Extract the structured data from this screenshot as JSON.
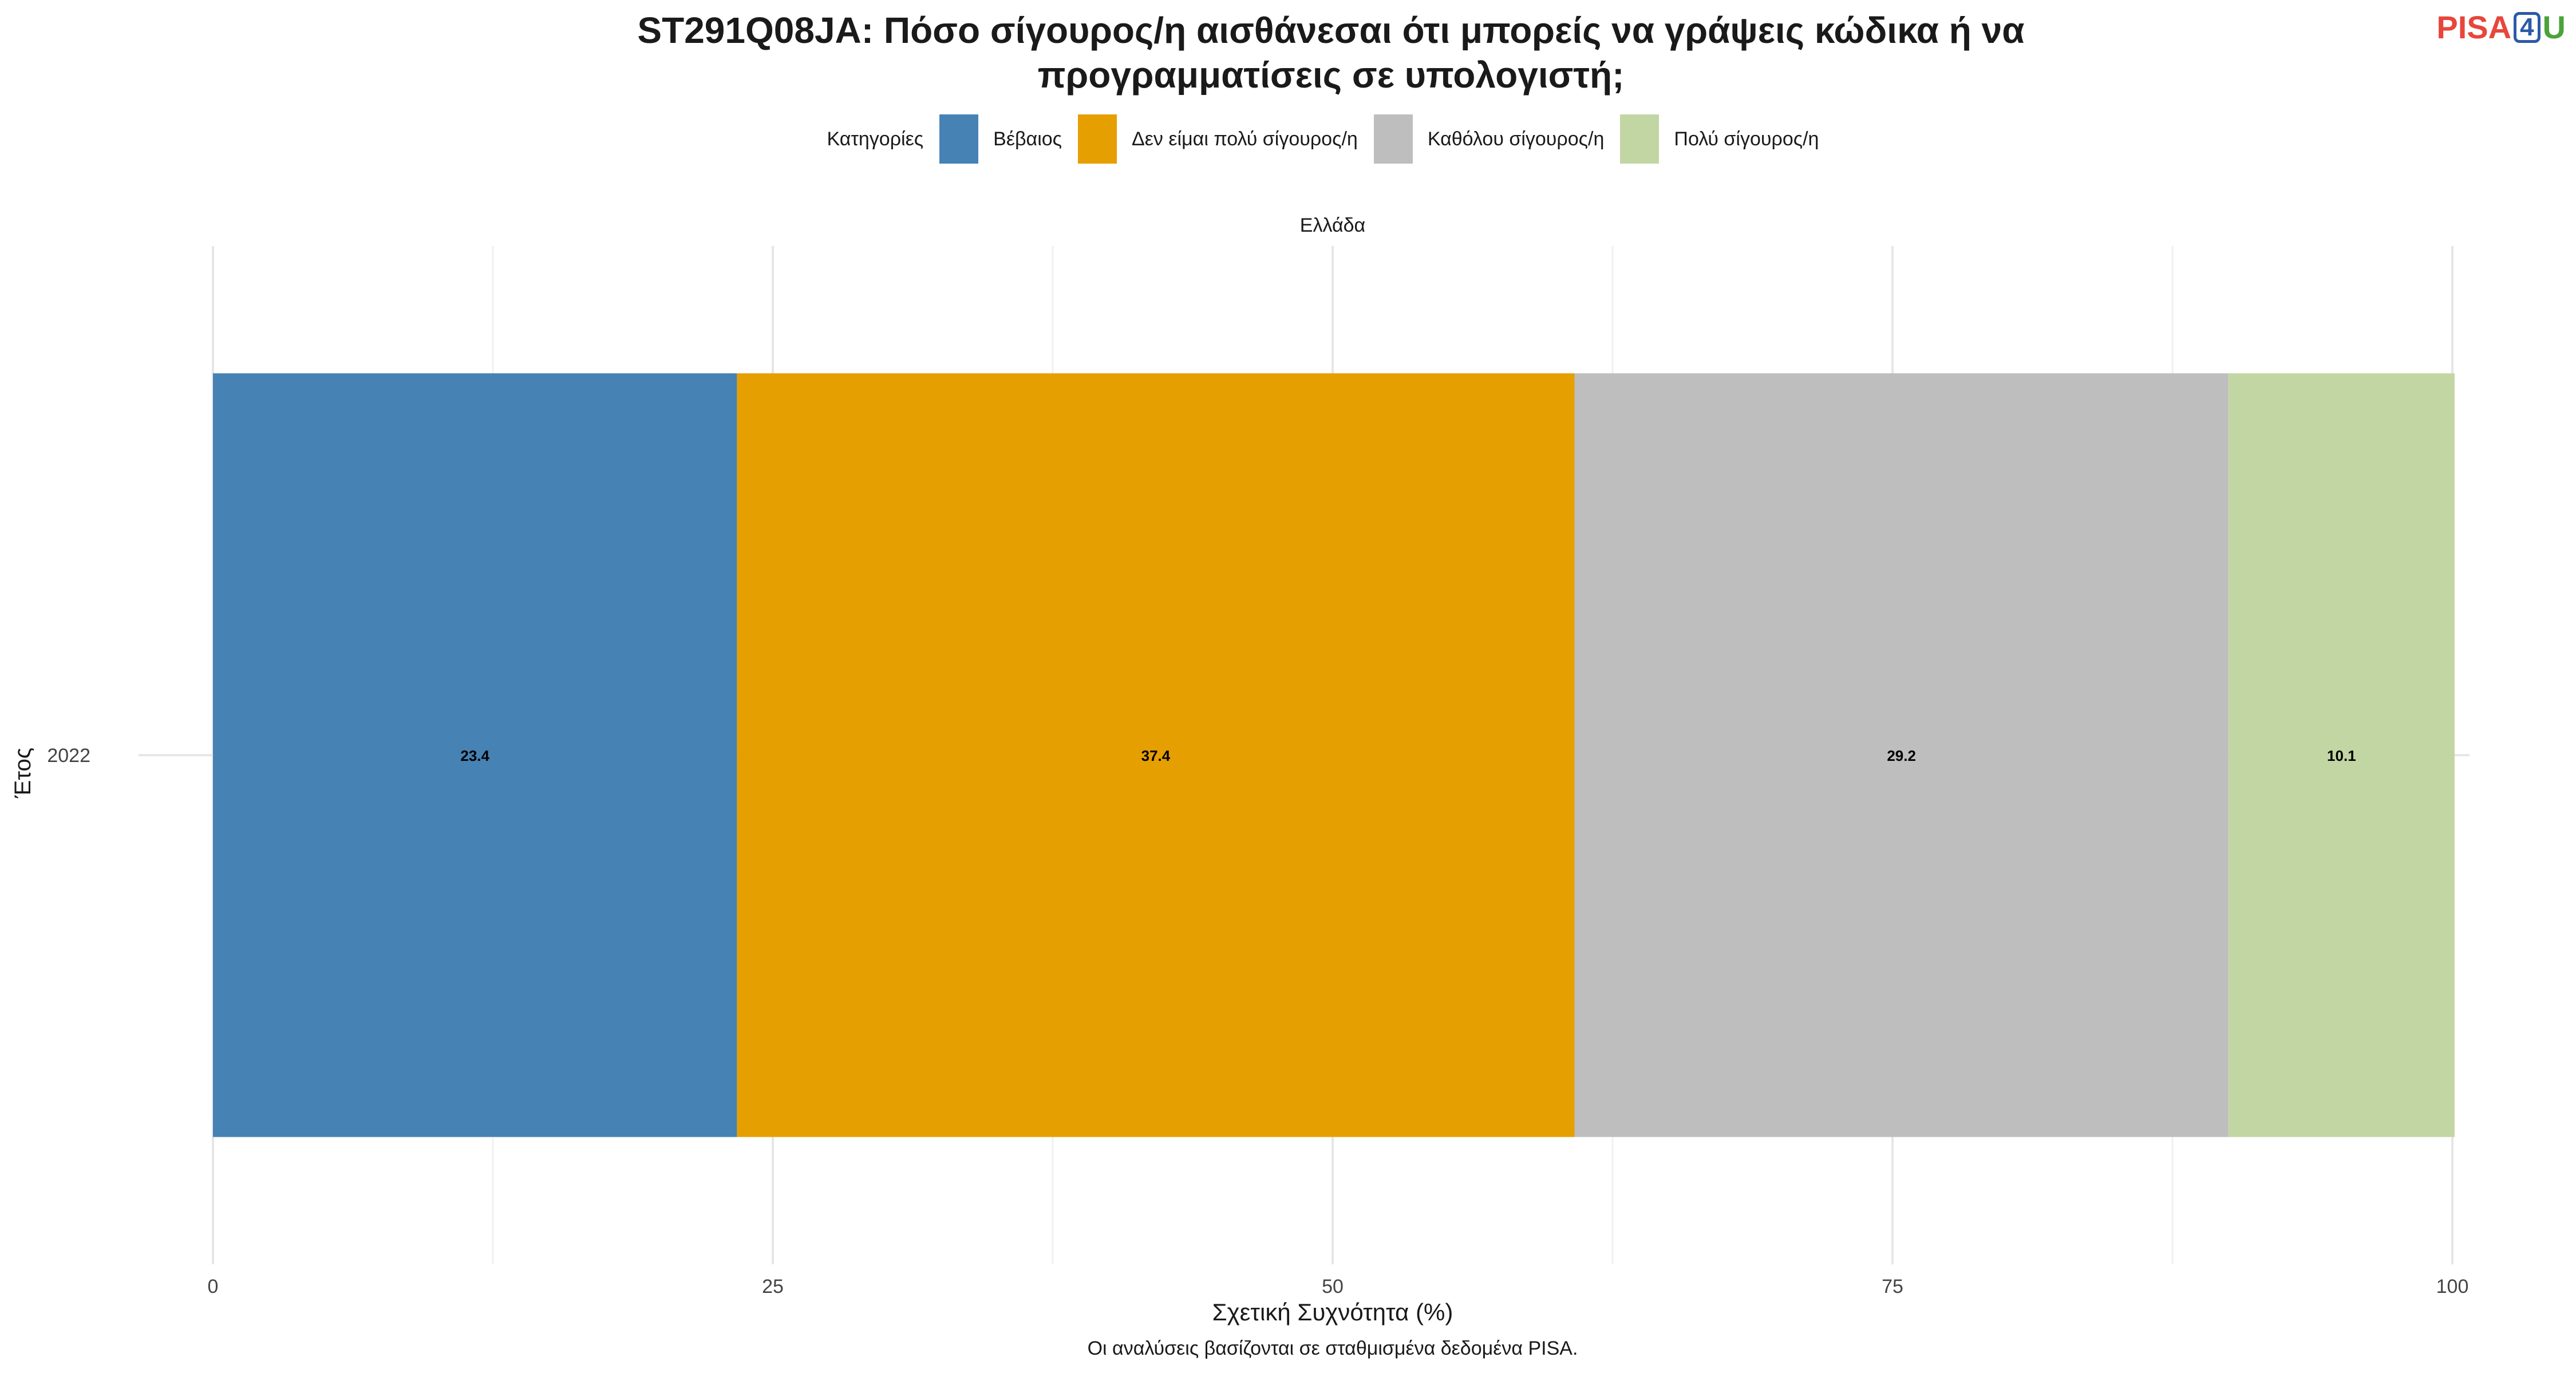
{
  "title_line1": "ST291Q08JA: Πόσο σίγουρος/η αισθάνεσαι ότι μπορείς να γράψεις κώδικα ή να",
  "title_line2": "προγραμματίσεις σε υπολογιστή;",
  "logo": {
    "pisa": "PISA",
    "four": "4",
    "u": "U"
  },
  "legend": {
    "title": "Κατηγορίες",
    "items": [
      {
        "label": "Βέβαιος",
        "color": "#4682B4"
      },
      {
        "label": "Δεν είμαι πολύ σίγουρος/η",
        "color": "#E69F00"
      },
      {
        "label": "Καθόλου σίγουρος/η",
        "color": "#BEBEBE"
      },
      {
        "label": "Πολύ σίγουρος/η",
        "color": "#C2D6A4"
      }
    ]
  },
  "facet": "Ελλάδα",
  "caption": "Οι αναλύσεις βασίζονται σε σταθμισμένα δεδομένα PISA.",
  "chart_data": {
    "type": "bar",
    "orientation": "horizontal",
    "stacked": true,
    "categories": [
      "2022"
    ],
    "series": [
      {
        "name": "Βέβαιος",
        "values": [
          23.4
        ],
        "color": "#4682B4"
      },
      {
        "name": "Δεν είμαι πολύ σίγουρος/η",
        "values": [
          37.4
        ],
        "color": "#E69F00"
      },
      {
        "name": "Καθόλου σίγουρος/η",
        "values": [
          29.2
        ],
        "color": "#BEBEBE"
      },
      {
        "name": "Πολύ σίγουρος/η",
        "values": [
          10.1
        ],
        "color": "#C2D6A4"
      }
    ],
    "xlabel": "Σχετική Συχνότητα (%)",
    "ylabel": "Έτος",
    "xlim": [
      0,
      100
    ],
    "xticks": [
      "0",
      "25",
      "50",
      "75",
      "100"
    ],
    "grid": true,
    "legend_position": "top"
  }
}
